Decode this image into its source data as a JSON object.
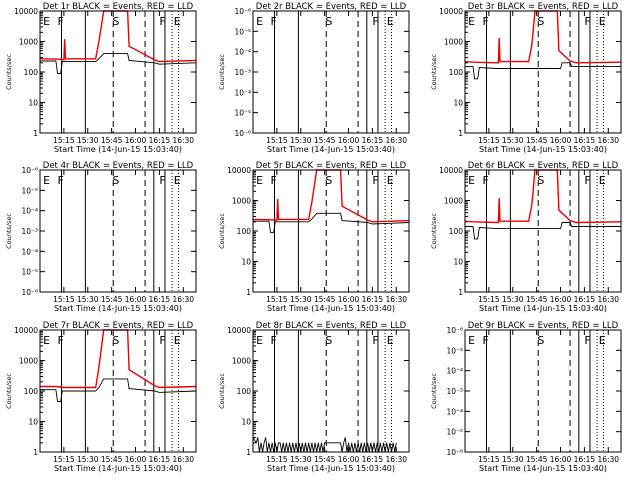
{
  "figure": {
    "start_time_label": "Start Time (14-Jun-15 15:03:40)",
    "ylabel": "Counts/sec",
    "time_ticks": [
      "15:15",
      "15:30",
      "15:45",
      "16:00",
      "16:15",
      "16:30"
    ],
    "time_tick_minutes": [
      15,
      30,
      45,
      60,
      75,
      90
    ],
    "x_range_minutes": [
      0,
      98
    ],
    "log_y_ticks": [
      "1",
      "10",
      "100",
      "1000",
      "10000"
    ],
    "log_y_range": [
      1,
      10000
    ],
    "tiny_y_ticks": [
      "10⁻⁶",
      "10⁻⁵",
      "10⁻⁴",
      "10⁻³",
      "10⁻⁴",
      "10⁻⁵",
      "10⁻⁶"
    ],
    "solid_line_minutes": [
      13.5,
      28.5,
      71.5,
      78.5
    ],
    "dashed_line_minutes": [
      46,
      66
    ],
    "dotted_line_minutes": [
      83,
      87
    ],
    "interval_letters": [
      {
        "letter": "E",
        "minute": 2
      },
      {
        "letter": "F",
        "minute": 11
      },
      {
        "letter": "S",
        "minute": 45.5
      },
      {
        "letter": "F",
        "minute": 75
      },
      {
        "letter": "E",
        "minute": 84
      }
    ],
    "colors": {
      "events": "#000000",
      "lld": "#ee0000"
    }
  },
  "chart_data": [
    {
      "id": "det1r",
      "type": "line",
      "title": "Det 1r BLACK = Events, RED = LLD",
      "yscale": "log",
      "series": [
        {
          "name": "Events",
          "color": "#000000",
          "x": [
            0,
            10,
            11,
            13,
            14,
            35,
            37,
            40,
            55,
            56,
            72,
            75,
            98
          ],
          "y": [
            230,
            230,
            90,
            90,
            220,
            220,
            270,
            400,
            400,
            240,
            200,
            180,
            200
          ]
        },
        {
          "name": "LLD",
          "color": "#ee0000",
          "x": [
            0,
            10,
            13,
            15,
            15.5,
            16,
            35,
            37,
            40,
            55,
            56,
            72,
            75,
            98
          ],
          "y": [
            270,
            265,
            260,
            250,
            1200,
            270,
            270,
            1000,
            10000,
            10000,
            700,
            250,
            220,
            240
          ]
        }
      ]
    },
    {
      "id": "det2r",
      "type": "line",
      "title": "Det 2r BLACK = Events, RED = LLD",
      "yscale": "linear-tiny",
      "series": []
    },
    {
      "id": "det3r",
      "type": "line",
      "title": "Det 3r BLACK = Events, RED = LLD",
      "yscale": "log",
      "series": [
        {
          "name": "Events",
          "color": "#000000",
          "x": [
            0,
            5,
            6,
            8,
            9,
            20,
            60,
            61,
            66,
            67,
            98
          ],
          "y": [
            150,
            150,
            60,
            60,
            140,
            130,
            130,
            200,
            200,
            150,
            150
          ]
        },
        {
          "name": "LLD",
          "color": "#ee0000",
          "x": [
            0,
            5,
            20,
            21,
            21.5,
            22,
            40,
            42,
            44,
            58,
            59,
            66,
            70,
            98
          ],
          "y": [
            220,
            210,
            200,
            200,
            1300,
            220,
            220,
            800,
            10000,
            10000,
            500,
            230,
            200,
            210
          ]
        }
      ]
    },
    {
      "id": "det4r",
      "type": "line",
      "title": "Det 4r BLACK = Events, RED = LLD",
      "yscale": "linear-tiny",
      "series": []
    },
    {
      "id": "det5r",
      "type": "line",
      "title": "Det 5r BLACK = Events, RED = LLD",
      "yscale": "log",
      "series": [
        {
          "name": "Events",
          "color": "#000000",
          "x": [
            0,
            10,
            11,
            13,
            14,
            35,
            37,
            40,
            55,
            56,
            72,
            75,
            98
          ],
          "y": [
            210,
            210,
            90,
            90,
            200,
            200,
            250,
            380,
            380,
            220,
            190,
            170,
            190
          ]
        },
        {
          "name": "LLD",
          "color": "#ee0000",
          "x": [
            0,
            10,
            13,
            15,
            15.5,
            16,
            35,
            37,
            40,
            55,
            56,
            72,
            75,
            98
          ],
          "y": [
            240,
            235,
            230,
            225,
            1100,
            240,
            240,
            900,
            10000,
            10000,
            650,
            230,
            200,
            220
          ]
        }
      ]
    },
    {
      "id": "det6r",
      "type": "line",
      "title": "Det 6r BLACK = Events, RED = LLD",
      "yscale": "log",
      "series": [
        {
          "name": "Events",
          "color": "#000000",
          "x": [
            0,
            5,
            6,
            8,
            9,
            20,
            60,
            61,
            66,
            67,
            98
          ],
          "y": [
            140,
            140,
            55,
            55,
            130,
            120,
            120,
            190,
            190,
            140,
            140
          ]
        },
        {
          "name": "LLD",
          "color": "#ee0000",
          "x": [
            0,
            5,
            20,
            21,
            21.5,
            22,
            40,
            42,
            44,
            58,
            59,
            66,
            70,
            98
          ],
          "y": [
            210,
            200,
            190,
            190,
            1200,
            210,
            210,
            750,
            10000,
            10000,
            480,
            220,
            190,
            200
          ]
        }
      ]
    },
    {
      "id": "det7r",
      "type": "line",
      "title": "Det 7r BLACK = Events, RED = LLD",
      "yscale": "log",
      "series": [
        {
          "name": "Events",
          "color": "#000000",
          "x": [
            0,
            10,
            11,
            13,
            14,
            35,
            37,
            40,
            55,
            56,
            72,
            75,
            98
          ],
          "y": [
            110,
            110,
            45,
            45,
            100,
            100,
            130,
            250,
            250,
            120,
            100,
            90,
            100
          ]
        },
        {
          "name": "LLD",
          "color": "#ee0000",
          "x": [
            0,
            10,
            13,
            15,
            35,
            37,
            40,
            55,
            56,
            72,
            75,
            98
          ],
          "y": [
            140,
            140,
            135,
            130,
            130,
            600,
            10000,
            10000,
            500,
            150,
            130,
            140
          ]
        }
      ]
    },
    {
      "id": "det8r",
      "type": "line",
      "title": "Det 8r BLACK = Events, RED = LLD",
      "yscale": "log",
      "series": [
        {
          "name": "Events",
          "color": "#000000",
          "x": [
            0,
            2,
            3,
            4,
            5,
            6,
            7,
            8,
            9,
            10,
            11,
            12,
            13,
            14,
            15,
            16,
            17,
            18,
            19,
            20,
            21,
            22,
            23,
            24,
            25,
            26,
            27,
            28,
            29,
            30,
            31,
            32,
            33,
            34,
            35,
            36,
            37,
            38,
            39,
            40,
            41,
            42,
            43,
            44,
            45,
            55,
            56,
            57,
            58,
            59,
            60,
            61,
            62,
            63,
            64,
            65,
            66,
            67,
            68,
            69,
            70,
            71,
            72,
            73,
            74,
            75,
            76,
            77,
            78,
            79,
            80,
            81,
            82,
            83,
            84,
            85,
            86,
            87,
            88,
            89,
            90
          ],
          "y": [
            3,
            2,
            3,
            1,
            2,
            1,
            2,
            3,
            1,
            2,
            1,
            2,
            1,
            2,
            1,
            2,
            2,
            1,
            2,
            1,
            2,
            1,
            2,
            1,
            2,
            1,
            2,
            1,
            2,
            1,
            2,
            1,
            2,
            1,
            2,
            1,
            2,
            1,
            2,
            1,
            2,
            1,
            2,
            1,
            2,
            2,
            1,
            2,
            3,
            1,
            2,
            1,
            2,
            1,
            2,
            1,
            2,
            1,
            2,
            1,
            2,
            1,
            2,
            1,
            2,
            1,
            2,
            1,
            2,
            1,
            2,
            1,
            2,
            1,
            2,
            1,
            2,
            1,
            2,
            1,
            2
          ]
        },
        {
          "name": "LLD",
          "color": "#ee0000",
          "x": [],
          "y": []
        }
      ]
    },
    {
      "id": "det9r",
      "type": "line",
      "title": "Det 9r BLACK = Events, RED = LLD",
      "yscale": "linear-tiny",
      "series": []
    }
  ]
}
